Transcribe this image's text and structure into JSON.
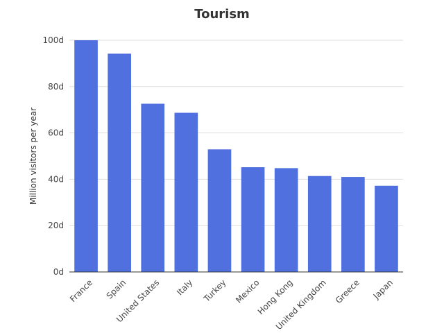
{
  "chart_data": {
    "type": "bar",
    "title": "Tourism",
    "xlabel": "",
    "ylabel": "Million visitors per year",
    "categories": [
      "France",
      "Spain",
      "United States",
      "Italy",
      "Turkey",
      "Mexico",
      "Hong Kong",
      "United Kingdom",
      "Greece",
      "Japan"
    ],
    "values": [
      100.0,
      94.2,
      72.6,
      68.7,
      52.9,
      45.2,
      44.8,
      41.4,
      41.0,
      37.2
    ],
    "ylim": [
      0,
      100
    ],
    "yticks": [
      "0d",
      "20d",
      "40d",
      "60d",
      "80d",
      "100d"
    ],
    "grid": true,
    "legend": "none",
    "bar_color": "#5170e0"
  }
}
